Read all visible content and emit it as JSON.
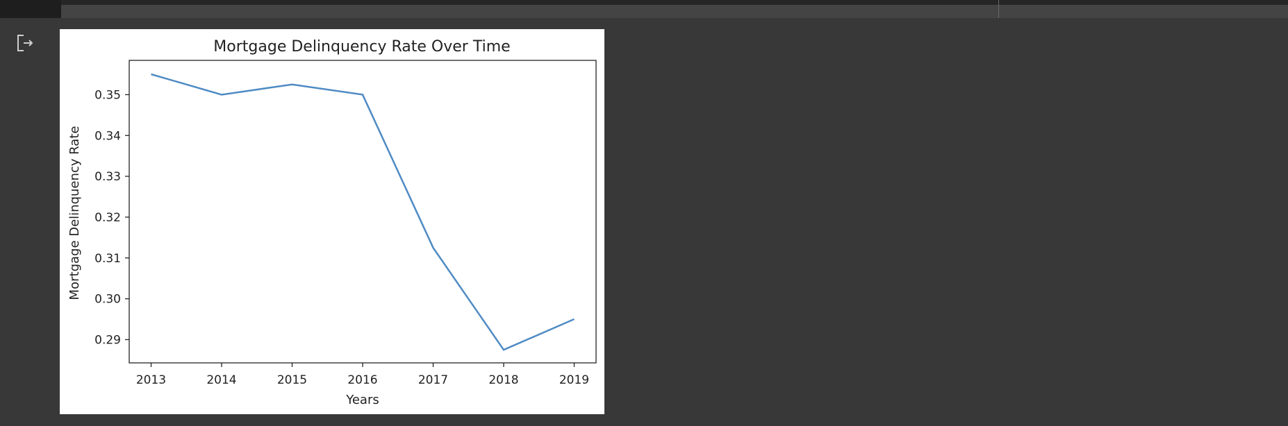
{
  "icons": {
    "output": "output-redirect-icon"
  },
  "chart_data": {
    "type": "line",
    "title": "Mortgage Delinquency Rate Over Time",
    "xlabel": "Years",
    "ylabel": "Mortgage Delinquency Rate",
    "x": [
      "2013",
      "2014",
      "2015",
      "2016",
      "2017",
      "2018",
      "2019"
    ],
    "series": [
      {
        "values": [
          0.355,
          0.35,
          0.3525,
          0.35,
          0.3125,
          0.2875,
          0.295
        ],
        "color": "#4f8bc4"
      }
    ],
    "yticks": [
      0.29,
      0.3,
      0.31,
      0.32,
      0.33,
      0.34,
      0.35
    ],
    "ytick_labels": [
      "0.29",
      "0.30",
      "0.31",
      "0.32",
      "0.33",
      "0.34",
      "0.35"
    ],
    "ylim": [
      0.2843,
      0.3584
    ],
    "grid": false
  }
}
